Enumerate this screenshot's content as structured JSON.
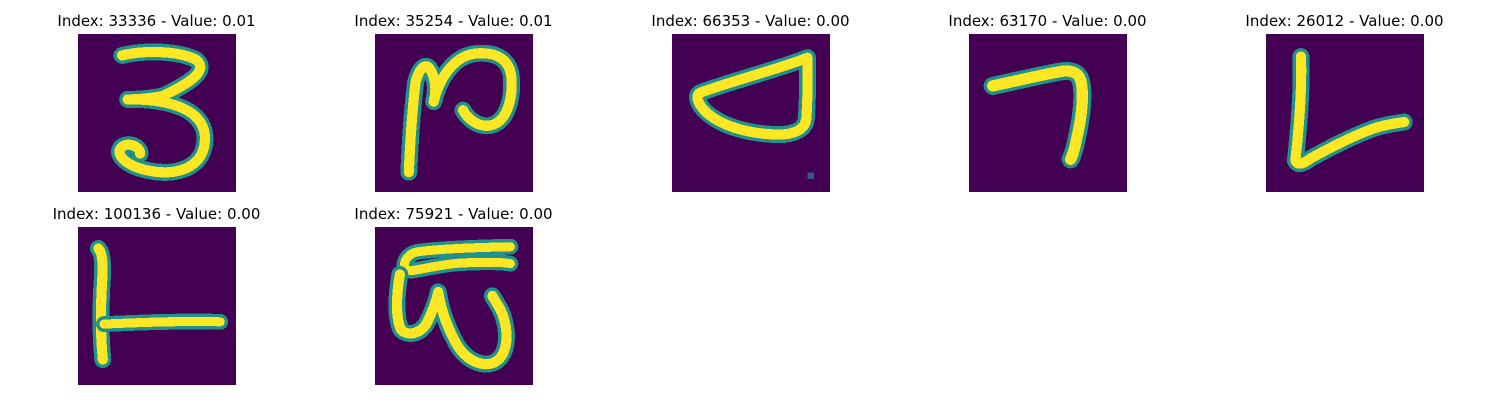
{
  "colors": {
    "background": "#440154",
    "stroke_edge": "#21918c",
    "stroke_core": "#fde725"
  },
  "panels": [
    {
      "title": "Index: 33336 - Value: 0.01"
    },
    {
      "title": "Index: 35254 - Value: 0.01"
    },
    {
      "title": "Index: 66353 - Value: 0.00"
    },
    {
      "title": "Index: 63170 - Value: 0.00"
    },
    {
      "title": "Index: 26012 - Value: 0.00"
    },
    {
      "title": "Index: 100136 - Value: 0.00"
    },
    {
      "title": "Index: 75921 - Value: 0.00"
    }
  ]
}
